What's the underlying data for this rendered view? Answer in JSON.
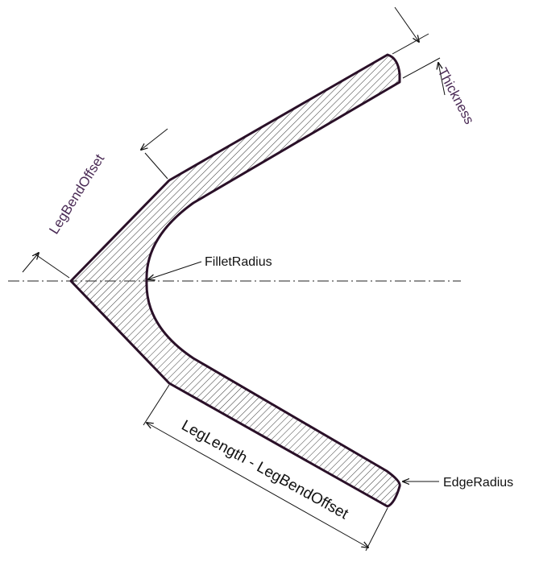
{
  "labels": {
    "thickness": "Thickness",
    "leg_bend_offset": "LegBendOffset",
    "fillet_radius": "FilletRadius",
    "edge_radius": "EdgeRadius",
    "leg_length_minus_offset": "LegLength - LegBendOffset"
  },
  "colors": {
    "outline": "#2a1028",
    "hatch": "#3a3a3a",
    "purple_text": "#4a2a55",
    "text": "#111111"
  }
}
